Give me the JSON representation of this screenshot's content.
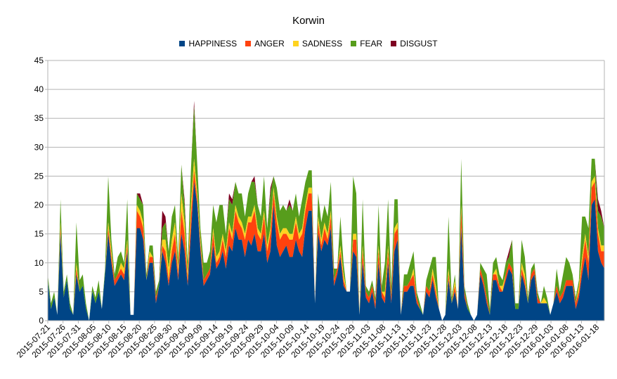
{
  "chart_data": {
    "type": "area",
    "stacked": true,
    "title": "Korwin",
    "legend_position": "top",
    "ylim": [
      0,
      45
    ],
    "yticks": [
      0,
      5,
      10,
      15,
      20,
      25,
      30,
      35,
      40,
      45
    ],
    "x_tick_labels": [
      "2015-07-21",
      "2015-07-26",
      "2015-07-31",
      "2015-08-05",
      "2015-08-10",
      "2015-08-15",
      "2015-08-20",
      "2015-08-25",
      "2015-08-30",
      "2015-09-04",
      "2015-09-09",
      "2015-09-14",
      "2015-09-19",
      "2015-09-24",
      "2015-09-29",
      "2015-10-04",
      "2015-10-09",
      "2015-10-14",
      "2015-10-19",
      "2015-10-24",
      "2015-10-29",
      "2015-11-03",
      "2015-11-08",
      "2015-11-13",
      "2015-11-18",
      "2015-11-23",
      "2015-11-28",
      "2015-12-03",
      "2015-12-08",
      "2015-12-13",
      "2015-12-18",
      "2015-12-23",
      "2015-12-29",
      "2016-01-03",
      "2016-01-08",
      "2016-01-13",
      "2016-01-18"
    ],
    "series": [
      {
        "name": "HAPPINESS",
        "color": "#004586",
        "values": [
          7,
          2,
          4,
          1,
          15,
          4,
          7,
          2,
          1,
          8,
          5,
          6,
          2,
          0,
          5,
          3,
          5,
          2,
          8,
          15,
          10,
          6,
          7,
          8,
          7,
          12,
          1,
          1,
          16,
          16,
          14,
          7,
          10,
          10,
          3,
          6,
          12,
          10,
          6,
          10,
          12,
          7,
          15,
          12,
          6,
          15,
          24,
          20,
          12,
          6,
          7,
          8,
          13,
          9,
          10,
          12,
          9,
          13,
          12,
          16,
          14,
          14,
          11,
          14,
          13,
          15,
          12,
          12,
          15,
          10,
          12,
          20,
          13,
          11,
          12,
          13,
          11,
          11,
          14,
          12,
          11,
          16,
          19,
          19,
          3,
          15,
          12,
          14,
          13,
          16,
          6,
          8,
          11,
          6,
          5,
          5,
          12,
          11,
          1,
          10,
          4,
          3,
          5,
          2,
          10,
          4,
          3,
          10,
          3,
          12,
          14,
          1,
          5,
          5,
          6,
          6,
          3,
          2,
          1,
          5,
          4,
          7,
          4,
          2,
          0,
          1,
          7,
          3,
          5,
          2,
          16,
          4,
          2,
          1,
          0,
          1,
          8,
          6,
          3,
          1,
          7,
          7,
          5,
          5,
          7,
          9,
          8,
          2,
          2,
          8,
          6,
          3,
          7,
          8,
          3,
          3,
          3,
          3,
          1,
          3,
          5,
          3,
          4,
          6,
          6,
          6,
          2,
          4,
          8,
          11,
          7,
          20,
          21,
          12,
          10,
          9
        ]
      },
      {
        "name": "ANGER",
        "color": "#ff420e",
        "values": [
          0,
          0,
          0,
          0,
          1,
          0,
          0,
          0,
          0,
          1,
          0,
          0,
          0,
          0,
          0,
          0,
          0,
          0,
          0,
          1,
          1,
          1,
          1,
          1,
          1,
          1,
          0,
          0,
          3,
          2,
          2,
          0,
          1,
          1,
          1,
          0,
          1,
          2,
          1,
          2,
          3,
          1,
          4,
          3,
          1,
          3,
          2,
          1,
          1,
          1,
          1,
          1,
          2,
          1,
          1,
          2,
          2,
          3,
          2,
          3,
          3,
          2,
          3,
          3,
          4,
          4,
          3,
          2,
          3,
          2,
          3,
          2,
          4,
          3,
          3,
          2,
          3,
          3,
          3,
          2,
          4,
          3,
          3,
          3,
          0,
          2,
          1,
          2,
          1,
          2,
          1,
          1,
          1,
          1,
          0,
          0,
          2,
          3,
          0,
          2,
          1,
          1,
          1,
          1,
          2,
          1,
          1,
          2,
          1,
          3,
          2,
          0,
          1,
          1,
          1,
          2,
          1,
          0,
          0,
          1,
          1,
          1,
          1,
          0,
          0,
          0,
          1,
          0,
          1,
          0,
          3,
          1,
          0,
          0,
          0,
          0,
          1,
          1,
          1,
          0,
          1,
          1,
          1,
          0,
          1,
          1,
          1,
          0,
          0,
          1,
          1,
          0,
          1,
          1,
          1,
          0,
          0,
          0,
          0,
          0,
          1,
          1,
          1,
          1,
          1,
          1,
          1,
          1,
          2,
          3,
          3,
          3,
          3,
          3,
          2,
          3
        ]
      },
      {
        "name": "SADNESS",
        "color": "#ffd320",
        "values": [
          0,
          0,
          0,
          0,
          1,
          0,
          0,
          0,
          0,
          1,
          0,
          0,
          0,
          0,
          0,
          0,
          0,
          0,
          0,
          1,
          1,
          0,
          0,
          1,
          1,
          1,
          0,
          0,
          1,
          1,
          1,
          0,
          1,
          0,
          0,
          0,
          1,
          2,
          2,
          2,
          2,
          1,
          3,
          2,
          1,
          2,
          2,
          1,
          1,
          0,
          0,
          0,
          1,
          1,
          1,
          1,
          1,
          1,
          1,
          1,
          1,
          1,
          1,
          1,
          1,
          1,
          1,
          1,
          1,
          1,
          1,
          1,
          1,
          1,
          1,
          1,
          1,
          1,
          1,
          1,
          1,
          1,
          1,
          1,
          0,
          1,
          1,
          1,
          1,
          1,
          0,
          0,
          1,
          1,
          0,
          0,
          1,
          1,
          0,
          1,
          0,
          0,
          0,
          0,
          1,
          0,
          1,
          1,
          0,
          1,
          1,
          0,
          0,
          0,
          0,
          1,
          0,
          0,
          0,
          0,
          0,
          1,
          1,
          0,
          0,
          0,
          1,
          0,
          1,
          0,
          1,
          0,
          0,
          0,
          0,
          0,
          0,
          0,
          0,
          0,
          0,
          1,
          0,
          1,
          0,
          0,
          0,
          0,
          0,
          1,
          1,
          0,
          0,
          0,
          0,
          0,
          1,
          0,
          0,
          0,
          0,
          0,
          0,
          0,
          0,
          0,
          0,
          1,
          1,
          1,
          1,
          1,
          1,
          1,
          1,
          1
        ]
      },
      {
        "name": "FEAR",
        "color": "#579d1c",
        "values": [
          1,
          1,
          1,
          0,
          4,
          1,
          1,
          1,
          0,
          7,
          2,
          2,
          1,
          0,
          1,
          1,
          2,
          0,
          1,
          8,
          2,
          1,
          3,
          2,
          1,
          7,
          0,
          0,
          2,
          2,
          3,
          1,
          1,
          2,
          1,
          1,
          2,
          3,
          3,
          4,
          3,
          2,
          5,
          3,
          2,
          6,
          9,
          5,
          2,
          3,
          2,
          3,
          4,
          6,
          8,
          5,
          3,
          4,
          5,
          4,
          4,
          5,
          3,
          4,
          6,
          4,
          4,
          3,
          6,
          3,
          6,
          2,
          5,
          4,
          4,
          3,
          5,
          4,
          4,
          3,
          5,
          4,
          3,
          3,
          0,
          4,
          3,
          3,
          3,
          5,
          2,
          0,
          5,
          2,
          0,
          0,
          10,
          7,
          0,
          8,
          1,
          1,
          1,
          1,
          7,
          1,
          5,
          8,
          2,
          5,
          4,
          0,
          2,
          2,
          3,
          3,
          1,
          1,
          0,
          1,
          4,
          2,
          5,
          0,
          0,
          0,
          9,
          1,
          1,
          0,
          8,
          1,
          1,
          0,
          0,
          0,
          1,
          2,
          4,
          1,
          2,
          2,
          2,
          1,
          2,
          1,
          5,
          1,
          1,
          4,
          3,
          1,
          1,
          1,
          1,
          0,
          2,
          1,
          0,
          0,
          3,
          1,
          3,
          4,
          3,
          1,
          1,
          1,
          7,
          3,
          5,
          4,
          3,
          3,
          5,
          3
        ]
      },
      {
        "name": "DISGUST",
        "color": "#7e0021",
        "values": [
          0,
          0,
          0,
          0,
          0,
          0,
          0,
          0,
          0,
          0,
          0,
          0,
          0,
          0,
          0,
          0,
          0,
          0,
          0,
          0,
          0,
          0,
          0,
          0,
          0,
          0,
          0,
          0,
          0,
          1,
          0,
          0,
          0,
          0,
          0,
          0,
          3,
          1,
          0,
          0,
          0,
          0,
          0,
          1,
          0,
          0,
          1,
          0,
          0,
          0,
          0,
          0,
          0,
          0,
          0,
          0,
          0,
          1,
          1,
          0,
          0,
          0,
          0,
          0,
          0,
          1,
          0,
          0,
          0,
          0,
          1,
          0,
          0,
          0,
          0,
          0,
          1,
          0,
          0,
          0,
          0,
          0,
          0,
          0,
          0,
          0,
          0,
          0,
          0,
          0,
          0,
          0,
          0,
          0,
          0,
          0,
          0,
          0,
          0,
          0,
          0,
          0,
          0,
          0,
          0,
          0,
          0,
          0,
          0,
          0,
          0,
          0,
          0,
          0,
          0,
          0,
          0,
          0,
          0,
          0,
          0,
          0,
          0,
          0,
          0,
          0,
          0,
          0,
          0,
          0,
          0,
          0,
          0,
          0,
          0,
          0,
          0,
          0,
          0,
          0,
          0,
          0,
          0,
          0,
          0,
          1,
          0,
          0,
          0,
          0,
          0,
          0,
          0,
          0,
          0,
          0,
          0,
          0,
          0,
          0,
          0,
          0,
          0,
          0,
          0,
          0,
          0,
          0,
          0,
          0,
          0,
          0,
          0,
          2,
          1,
          0
        ]
      }
    ]
  }
}
